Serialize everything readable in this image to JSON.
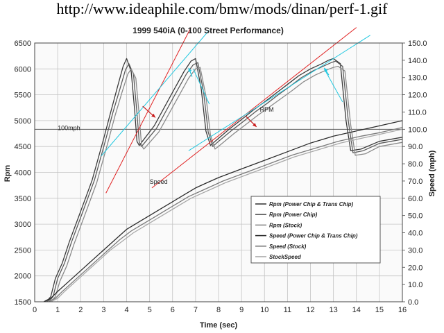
{
  "page": {
    "url_caption": "http://www.ideaphile.com/bmw/mods/dinan/perf-1.gif"
  },
  "chart_data": {
    "type": "line",
    "title": "1999 540iA  (0-100 Street Performance)",
    "xlabel": "Time (sec)",
    "ylabel": "Rpm",
    "y2label": "Speed (mph)",
    "xlim": [
      0,
      16
    ],
    "ylim": [
      1500,
      6500
    ],
    "y2lim": [
      0,
      150
    ],
    "x_ticks": [
      "0",
      "1",
      "2",
      "3",
      "4",
      "5",
      "6",
      "7",
      "8",
      "9",
      "10",
      "11",
      "12",
      "13",
      "14",
      "15",
      "16"
    ],
    "y_ticks": [
      "1500",
      "2000",
      "2500",
      "3000",
      "3500",
      "4000",
      "4500",
      "5000",
      "5500",
      "6000",
      "6500"
    ],
    "y2_ticks": [
      "0.0",
      "10.0",
      "20.0",
      "30.0",
      "40.0",
      "50.0",
      "60.0",
      "70.0",
      "80.0",
      "90.0",
      "100.0",
      "110.0",
      "120.0",
      "130.0",
      "140.0",
      "150.0"
    ],
    "grid": true,
    "legend_position": "lower-right",
    "annotations": [
      {
        "text": "100mph",
        "x": 1.0,
        "y": 4820
      },
      {
        "text": "RPM",
        "x": 9.8,
        "y": 5170
      },
      {
        "text": "Speed",
        "x": 5.0,
        "y": 3780
      }
    ],
    "reference_line": {
      "axis": "y2",
      "value": 100
    },
    "overlay_lines": {
      "red": [
        [
          [
            3.1,
            3600
          ],
          [
            6.8,
            6800
          ]
        ],
        [
          [
            5.1,
            3700
          ],
          [
            14.0,
            6800
          ]
        ]
      ],
      "cyan": [
        [
          [
            2.9,
            4320
          ],
          [
            7.6,
            6750
          ]
        ],
        [
          [
            6.7,
            4420
          ],
          [
            14.6,
            6650
          ]
        ],
        [
          [
            6.9,
            6000
          ],
          [
            7.6,
            5320
          ]
        ],
        [
          [
            12.6,
            6000
          ],
          [
            13.4,
            5360
          ]
        ]
      ],
      "arrows_red": [
        [
          [
            4.7,
            5280
          ],
          [
            5.25,
            5060
          ]
        ],
        [
          [
            9.2,
            5080
          ],
          [
            9.65,
            4880
          ]
        ]
      ],
      "arrows_cyan": [
        [
          [
            6.85,
            5850
          ],
          [
            6.7,
            6020
          ]
        ],
        [
          [
            12.8,
            5880
          ],
          [
            12.6,
            6020
          ]
        ]
      ]
    },
    "series": [
      {
        "name": "Rpm (Power Chip & Trans Chip)",
        "axis": "left",
        "color": "#3a3a3a",
        "dash": "",
        "x": [
          0.4,
          0.6,
          0.7,
          0.9,
          1.2,
          1.5,
          2.0,
          2.5,
          3.0,
          3.3,
          3.6,
          3.85,
          4.0,
          4.2,
          4.35,
          4.45,
          4.55,
          5.2,
          6.0,
          6.5,
          6.8,
          7.0,
          7.25,
          7.45,
          7.65,
          7.9,
          8.5,
          9.0,
          9.5,
          10.0,
          10.5,
          11.0,
          11.5,
          12.0,
          12.5,
          12.8,
          13.0,
          13.3,
          13.55,
          13.75,
          14.2,
          15.0,
          16.0
        ],
        "y": [
          1500,
          1550,
          1600,
          1950,
          2250,
          2650,
          3250,
          3850,
          4650,
          5150,
          5650,
          6050,
          6200,
          5950,
          5200,
          4600,
          4520,
          4900,
          5550,
          5950,
          6150,
          6200,
          5600,
          4800,
          4520,
          4620,
          4850,
          5020,
          5200,
          5360,
          5530,
          5700,
          5870,
          6000,
          6100,
          6170,
          6200,
          6100,
          5000,
          4420,
          4450,
          4600,
          4680
        ]
      },
      {
        "name": "Rpm (Power Chip)",
        "axis": "left",
        "color": "#5a5a5a",
        "dash": "",
        "x": [
          0.5,
          0.7,
          0.8,
          1.0,
          1.3,
          1.6,
          2.1,
          2.6,
          3.1,
          3.4,
          3.7,
          3.95,
          4.1,
          4.3,
          4.45,
          4.55,
          4.65,
          5.3,
          6.1,
          6.6,
          6.9,
          7.1,
          7.35,
          7.55,
          7.75,
          8.0,
          8.6,
          9.1,
          9.6,
          10.1,
          10.6,
          11.1,
          11.6,
          12.1,
          12.6,
          12.9,
          13.1,
          13.4,
          13.65,
          13.85,
          14.3,
          15.0,
          16.0
        ],
        "y": [
          1500,
          1550,
          1600,
          1950,
          2250,
          2650,
          3250,
          3850,
          4650,
          5150,
          5600,
          5980,
          6100,
          5900,
          5150,
          4580,
          4500,
          4850,
          5500,
          5900,
          6080,
          6120,
          5550,
          4780,
          4500,
          4600,
          4820,
          4990,
          5170,
          5330,
          5500,
          5660,
          5830,
          5960,
          6060,
          6120,
          6150,
          6050,
          4980,
          4380,
          4420,
          4560,
          4640
        ]
      },
      {
        "name": "Rpm (Stock)",
        "axis": "left",
        "color": "#8a8a8a",
        "dash": "",
        "x": [
          0.6,
          0.8,
          0.9,
          1.1,
          1.4,
          1.7,
          2.2,
          2.7,
          3.2,
          3.5,
          3.8,
          4.05,
          4.2,
          4.4,
          4.55,
          4.65,
          4.75,
          5.4,
          6.2,
          6.7,
          7.0,
          7.2,
          7.45,
          7.65,
          7.85,
          8.1,
          8.7,
          9.2,
          9.7,
          10.2,
          10.7,
          11.2,
          11.7,
          12.2,
          12.7,
          13.0,
          13.2,
          13.5,
          13.75,
          13.95,
          14.4,
          15.0,
          16.0
        ],
        "y": [
          1500,
          1550,
          1600,
          1900,
          2200,
          2600,
          3200,
          3800,
          4600,
          5100,
          5550,
          5900,
          6000,
          5820,
          5100,
          4520,
          4450,
          4780,
          5420,
          5820,
          6000,
          6030,
          5480,
          4720,
          4450,
          4540,
          4760,
          4930,
          5100,
          5260,
          5420,
          5580,
          5750,
          5880,
          5980,
          6030,
          6050,
          5960,
          4920,
          4330,
          4360,
          4500,
          4580
        ]
      },
      {
        "name": "Speed (Power Chip & Trans Chip)",
        "axis": "right",
        "color": "#2a2a2a",
        "dash": "",
        "x": [
          0.4,
          0.7,
          1.0,
          1.5,
          2.0,
          2.5,
          3.0,
          3.5,
          4.0,
          4.5,
          5.0,
          5.5,
          6.0,
          6.5,
          7.0,
          7.5,
          8.0,
          9.0,
          10.0,
          11.0,
          12.0,
          13.0,
          14.0,
          15.0,
          16.0
        ],
        "y": [
          0,
          2,
          6,
          12,
          18,
          24,
          30,
          36,
          42,
          46,
          50,
          54,
          58,
          62,
          66,
          69,
          72,
          77,
          82,
          87,
          92,
          96,
          99,
          102,
          105
        ]
      },
      {
        "name": "Speed (Stock)",
        "axis": "right",
        "color": "#7a7a7a",
        "dash": "",
        "x": [
          0.6,
          0.9,
          1.2,
          1.7,
          2.2,
          2.7,
          3.2,
          3.7,
          4.2,
          4.7,
          5.2,
          5.7,
          6.2,
          6.7,
          7.2,
          7.7,
          8.2,
          9.2,
          10.2,
          11.2,
          12.2,
          13.2,
          14.2,
          15.0,
          16.0
        ],
        "y": [
          0,
          2,
          6,
          12,
          18,
          24,
          30,
          36,
          41,
          45,
          49,
          53,
          57,
          61,
          64,
          67,
          70,
          75,
          80,
          85,
          89,
          93,
          96,
          98,
          101
        ]
      },
      {
        "name": "StockSpeed",
        "axis": "right",
        "color": "#a8a8a8",
        "dash": "",
        "x": [
          0.7,
          1.0,
          1.3,
          1.8,
          2.3,
          2.8,
          3.3,
          3.8,
          4.3,
          4.8,
          5.3,
          5.8,
          6.3,
          6.8,
          7.3,
          7.8,
          8.3,
          9.3,
          10.3,
          11.3,
          12.3,
          13.3,
          14.3,
          15.0,
          16.0
        ],
        "y": [
          0,
          2,
          6,
          12,
          18,
          24,
          30,
          35,
          40,
          44,
          48,
          52,
          56,
          60,
          63,
          66,
          69,
          74,
          79,
          84,
          88,
          92,
          95,
          97,
          100
        ]
      }
    ]
  }
}
